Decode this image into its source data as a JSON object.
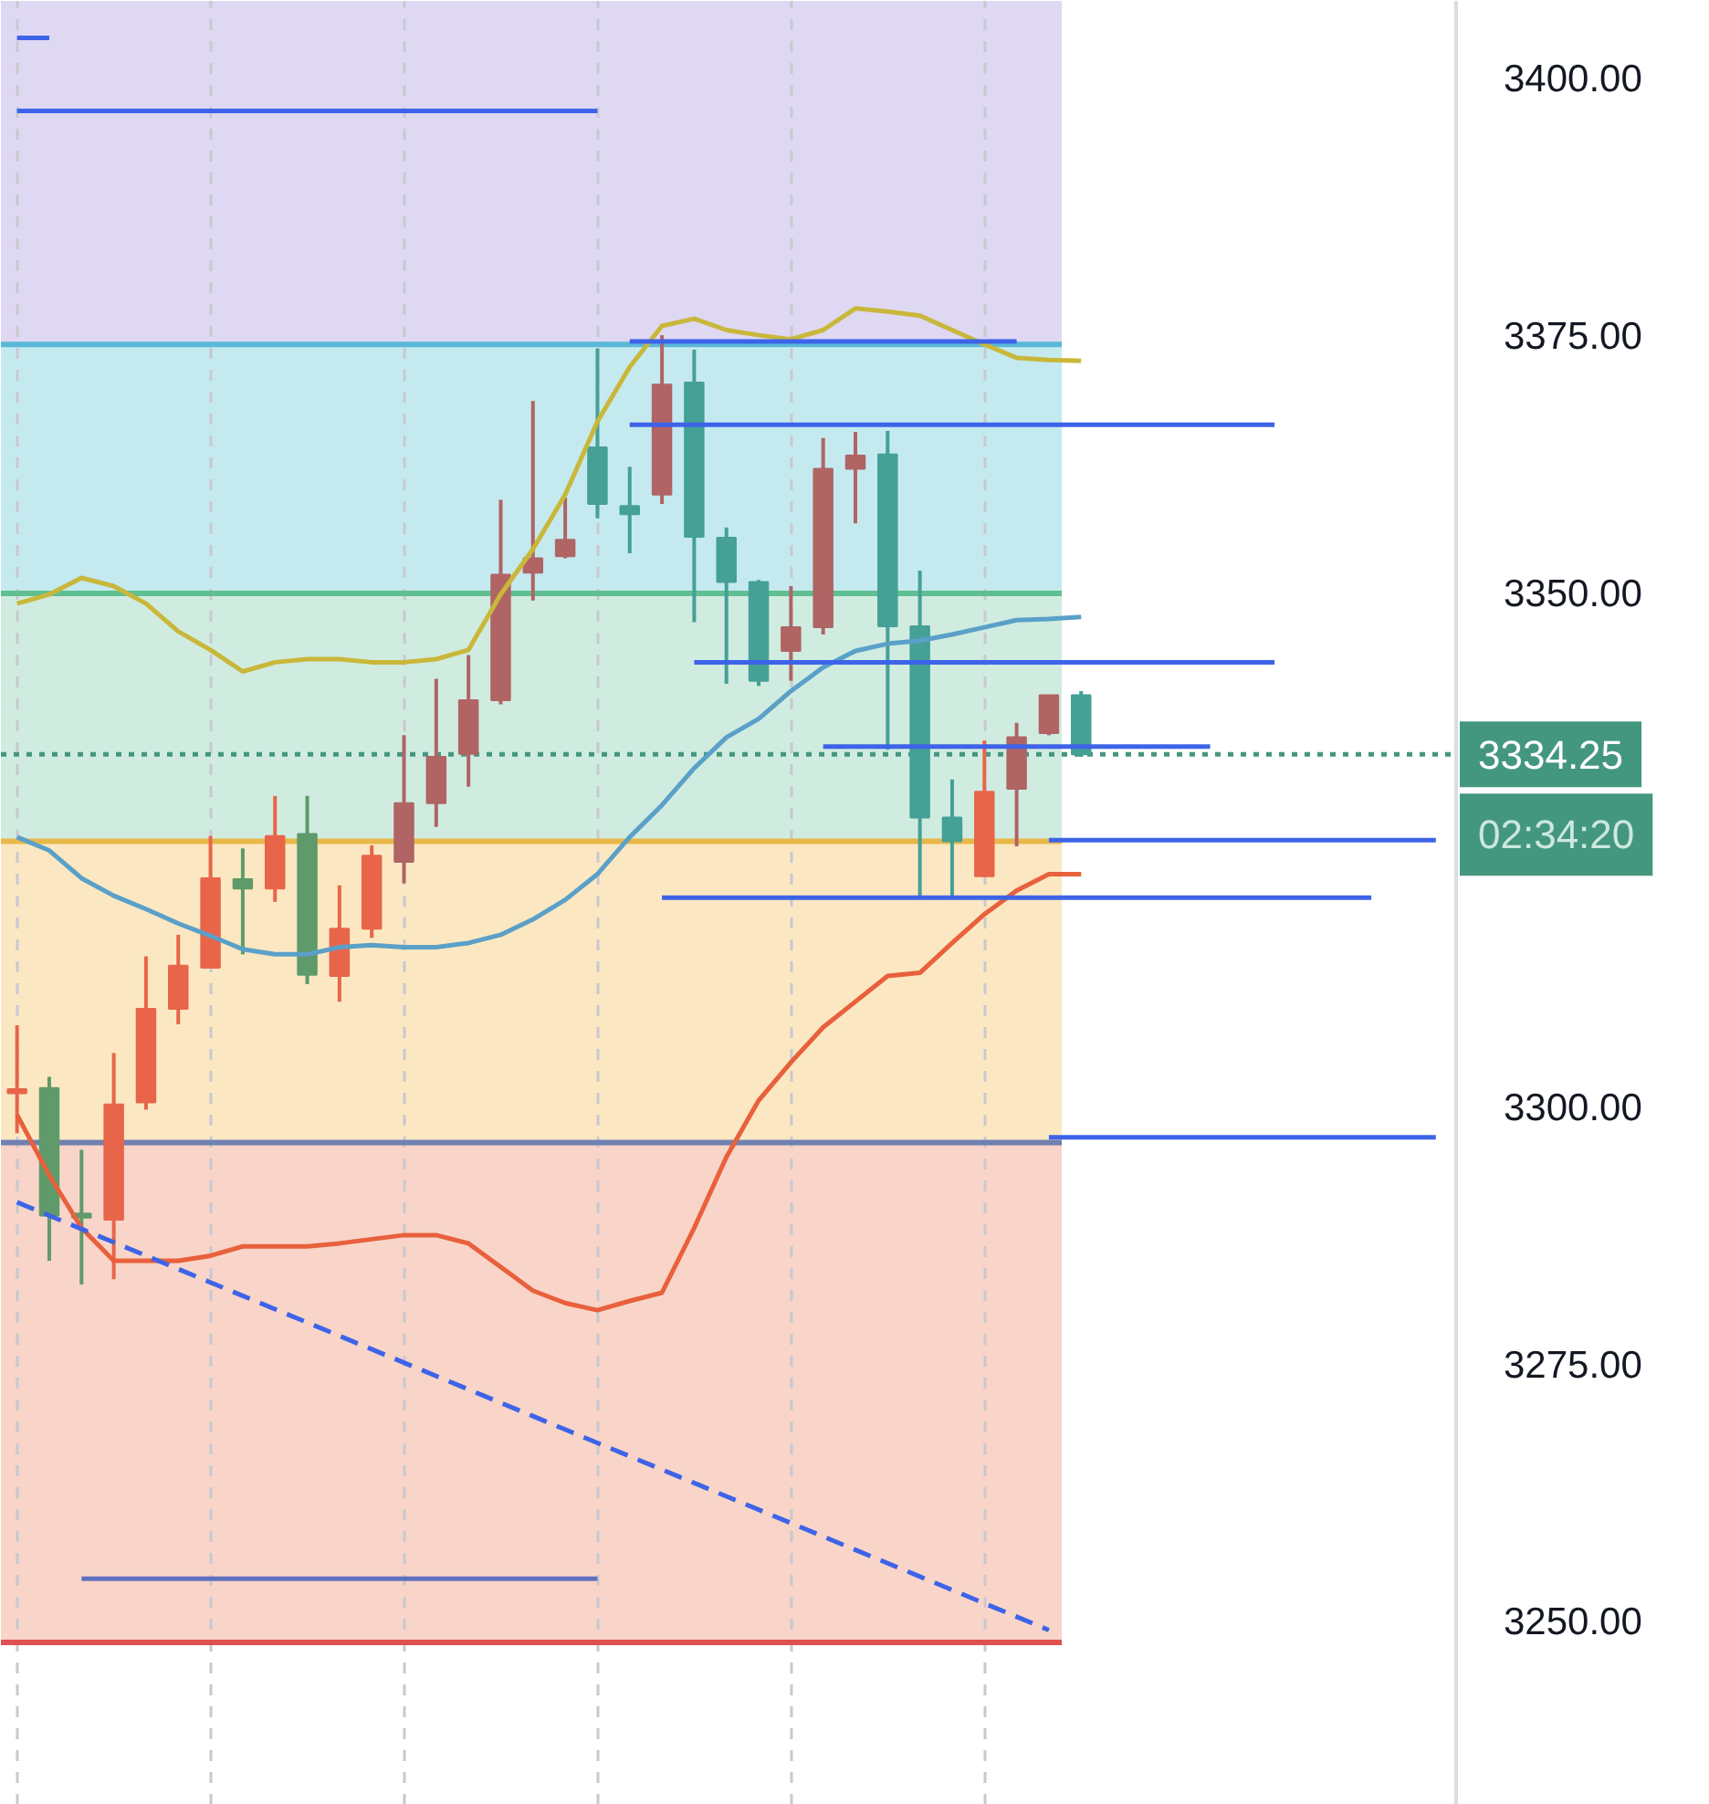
{
  "chart_data": {
    "type": "candlestick",
    "categories": [
      null,
      null,
      null,
      null,
      null,
      null,
      null,
      null,
      null,
      null,
      null,
      null,
      null,
      null,
      null,
      null,
      null,
      null,
      null,
      null,
      null,
      null,
      null,
      null,
      null,
      null,
      null,
      null,
      null,
      null,
      null,
      null,
      null,
      null,
      null,
      null,
      null,
      null,
      null,
      null,
      null,
      null,
      null,
      null,
      null,
      null,
      null,
      null,
      null,
      null,
      null,
      null,
      null
    ],
    "ohlc": [
      [
        3301.3,
        3307.9,
        3297.4,
        3301.7
      ],
      [
        3301.8,
        3302.9,
        3285.0,
        3289.4
      ],
      [
        3289.6,
        3295.8,
        3282.7,
        3289.2
      ],
      [
        3289.0,
        3305.2,
        3283.2,
        3300.2
      ],
      [
        3300.4,
        3314.6,
        3299.7,
        3309.5
      ],
      [
        3309.5,
        3316.7,
        3308.0,
        3313.7
      ],
      [
        3313.5,
        3326.3,
        3313.4,
        3322.2
      ],
      [
        3322.1,
        3325.1,
        3314.8,
        3321.2
      ],
      [
        3321.2,
        3330.2,
        3319.9,
        3326.3
      ],
      [
        3326.5,
        3330.2,
        3311.9,
        3312.8
      ],
      [
        3312.7,
        3321.5,
        3310.2,
        3317.3
      ],
      [
        3317.3,
        3325.4,
        3316.4,
        3324.4
      ],
      [
        3323.8,
        3336.1,
        3321.7,
        3329.5
      ],
      [
        3329.5,
        3341.6,
        3327.2,
        3334.0
      ],
      [
        3334.3,
        3343.9,
        3331.1,
        3339.5
      ],
      [
        3339.5,
        3359.0,
        3339.1,
        3351.7
      ],
      [
        3351.9,
        3368.6,
        3349.2,
        3353.3
      ],
      [
        3353.5,
        3359.2,
        3353.3,
        3355.1
      ],
      [
        3364.1,
        3373.7,
        3357.2,
        3358.6
      ],
      [
        3358.4,
        3362.2,
        3353.8,
        3357.6
      ],
      [
        3359.5,
        3375.0,
        3358.6,
        3370.2
      ],
      [
        3370.4,
        3373.6,
        3347.1,
        3355.4
      ],
      [
        3355.3,
        3356.3,
        3341.1,
        3351.0
      ],
      [
        3351.0,
        3351.2,
        3340.9,
        3341.4
      ],
      [
        3344.3,
        3350.6,
        3341.4,
        3346.6
      ],
      [
        3346.6,
        3365.0,
        3345.9,
        3362.0
      ],
      [
        3362.0,
        3365.6,
        3356.7,
        3363.3
      ],
      [
        3363.4,
        3365.7,
        3334.7,
        3346.7
      ],
      [
        3346.7,
        3352.1,
        3320.4,
        3328.1
      ],
      [
        3328.1,
        3331.8,
        3320.4,
        3325.8
      ],
      [
        3322.4,
        3335.6,
        3322.3,
        3330.6
      ],
      [
        3330.9,
        3337.3,
        3325.3,
        3335.9
      ],
      [
        3336.3,
        3340.0,
        3336.1,
        3340.0
      ],
      [
        3340.0,
        3340.4,
        3334.0,
        3334.25
      ],
      null,
      null,
      null,
      null,
      null,
      null,
      null,
      null,
      null,
      null,
      null,
      null,
      null,
      null,
      null,
      null,
      null,
      null,
      null
    ],
    "colors": [
      "#e8654a",
      "#5f9a6a",
      "#5f9a6a",
      "#e8654a",
      "#e8654a",
      "#e8654a",
      "#e8654a",
      "#5f9a6a",
      "#e8654a",
      "#5f9a6a",
      "#e8654a",
      "#e8654a",
      "#b06464",
      "#b06464",
      "#b06464",
      "#b06464",
      "#b06464",
      "#b06464",
      "#45a096",
      "#45a096",
      "#b06464",
      "#45a096",
      "#45a096",
      "#45a096",
      "#b06464",
      "#b06464",
      "#b06464",
      "#45a096",
      "#45a096",
      "#45a096",
      "#e8654a",
      "#b06464",
      "#b06464",
      "#45a096",
      null,
      null,
      null,
      null,
      null,
      null,
      null,
      null,
      null,
      null,
      null,
      null,
      null,
      null,
      null,
      null,
      null,
      null,
      null
    ],
    "series": [
      {
        "type": "line",
        "color": "#c9b73a",
        "values": [
          3348.9,
          3349.8,
          3351.4,
          3350.6,
          3348.9,
          3346.2,
          3344.4,
          3342.3,
          3343.2,
          3343.5,
          3343.5,
          3343.2,
          3343.2,
          3343.5,
          3344.4,
          3349.8,
          3354.2,
          3359.5,
          3366.6,
          3371.9,
          3375.9,
          3376.6,
          3375.5,
          3375.0,
          3374.6,
          3375.5,
          3377.6,
          3377.3,
          3376.9,
          3375.5,
          3374.1,
          3372.8,
          3372.6,
          3372.5,
          null,
          null,
          null,
          null,
          null,
          null,
          null,
          null,
          null,
          null,
          null,
          null,
          null,
          null,
          null,
          null,
          null,
          null,
          null
        ]
      },
      {
        "type": "line",
        "color": "#5aa0c8",
        "values": [
          3326.2,
          3324.9,
          3322.2,
          3320.5,
          3319.2,
          3317.8,
          3316.6,
          3315.3,
          3314.8,
          3314.8,
          3315.5,
          3315.7,
          3315.5,
          3315.5,
          3315.9,
          3316.7,
          3318.2,
          3320.1,
          3322.6,
          3326.2,
          3329.3,
          3332.9,
          3335.9,
          3337.7,
          3340.4,
          3342.7,
          3344.3,
          3345.0,
          3345.3,
          3345.9,
          3346.6,
          3347.3,
          3347.4,
          3347.6,
          null,
          null,
          null,
          null,
          null,
          null,
          null,
          null,
          null,
          null,
          null,
          null,
          null,
          null,
          null,
          null,
          null,
          null,
          null
        ]
      },
      {
        "type": "line",
        "color": "#e8603c",
        "values": [
          3299.2,
          3293.3,
          3288.2,
          3285.0,
          3285.0,
          3285.0,
          3285.5,
          3286.4,
          3286.4,
          3286.4,
          3286.7,
          3287.1,
          3287.5,
          3287.5,
          3286.7,
          3284.4,
          3282.1,
          3280.9,
          3280.2,
          3281.1,
          3281.9,
          3288.2,
          3295.1,
          3300.6,
          3304.3,
          3307.7,
          3310.2,
          3312.7,
          3313.0,
          3315.9,
          3318.7,
          3321.0,
          3322.6,
          3322.6,
          null,
          null,
          null,
          null,
          null,
          null,
          null,
          null,
          null,
          null,
          null,
          null,
          null,
          null,
          null,
          null,
          null,
          null,
          null
        ]
      },
      {
        "type": "line",
        "color": "#3d63e8",
        "line_style": "dashed",
        "values": [
          3290.7,
          3289.4,
          3288.1,
          3286.8,
          3285.5,
          3284.2,
          3282.9,
          3281.6,
          3280.3,
          3279.0,
          3277.7,
          3276.4,
          3275.1,
          3273.8,
          3272.5,
          3271.2,
          3269.9,
          3268.6,
          3267.3,
          3266.0,
          3264.7,
          3263.4,
          3262.1,
          3260.8,
          3259.5,
          3258.2,
          3256.9,
          3255.6,
          3254.3,
          3253.0,
          3251.7,
          3250.4,
          3249.1,
          null,
          null,
          null,
          null,
          null,
          null,
          null,
          null,
          null,
          null,
          null,
          null,
          null,
          null,
          null,
          null,
          null,
          null,
          null,
          null
        ]
      },
      {
        "type": "line",
        "color": "#3d63e8",
        "values": [
          3403.9,
          3403.9,
          null,
          null,
          null,
          null,
          null,
          null,
          null,
          null,
          null,
          null,
          null,
          null,
          null,
          null,
          null,
          null,
          null,
          null,
          null,
          null,
          null,
          null,
          null,
          null,
          null,
          null,
          null,
          null,
          null,
          null,
          null,
          null,
          null,
          null,
          null,
          null,
          null,
          null,
          null,
          null,
          null,
          null,
          null,
          null,
          null,
          null,
          null,
          null,
          null,
          null,
          null
        ]
      },
      {
        "type": "line",
        "color": "#3d63e8",
        "values": [
          3396.8,
          3396.8,
          3396.8,
          3396.8,
          3396.8,
          3396.8,
          3396.8,
          3396.8,
          3396.8,
          3396.8,
          3396.8,
          3396.8,
          3396.8,
          3396.8,
          3396.8,
          3396.8,
          3396.8,
          3396.8,
          3396.8,
          null,
          null,
          null,
          null,
          null,
          null,
          null,
          null,
          null,
          null,
          null,
          null,
          null,
          null,
          null,
          null,
          null,
          null,
          null,
          null,
          null,
          null,
          null,
          null,
          null,
          null,
          null,
          null,
          null,
          null,
          null,
          null,
          null,
          null
        ]
      },
      {
        "type": "line",
        "color": "#3d63e8",
        "values": [
          null,
          null,
          null,
          null,
          null,
          null,
          null,
          null,
          null,
          null,
          null,
          null,
          null,
          null,
          null,
          null,
          null,
          null,
          null,
          3374.4,
          3374.4,
          3374.4,
          3374.4,
          3374.4,
          3374.4,
          3374.4,
          3374.4,
          3374.4,
          3374.4,
          3374.4,
          3374.4,
          3374.4,
          null,
          null,
          null,
          null,
          null,
          null,
          null,
          null,
          null,
          null,
          null,
          null,
          null,
          null,
          null,
          null,
          null,
          null,
          null,
          null,
          null
        ]
      },
      {
        "type": "line",
        "color": "#3d63e8",
        "values": [
          null,
          null,
          null,
          null,
          null,
          null,
          null,
          null,
          null,
          null,
          null,
          null,
          null,
          null,
          null,
          null,
          null,
          null,
          null,
          3366.3,
          3366.3,
          3366.3,
          3366.3,
          3366.3,
          3366.3,
          3366.3,
          3366.3,
          3366.3,
          3366.3,
          3366.3,
          3366.3,
          3366.3,
          3366.3,
          3366.3,
          3366.3,
          3366.3,
          3366.3,
          3366.3,
          3366.3,
          3366.3,
          null,
          null,
          null,
          null,
          null,
          null,
          null,
          null,
          null,
          null,
          null,
          null,
          null
        ]
      },
      {
        "type": "line",
        "color": "#3d63e8",
        "values": [
          null,
          null,
          null,
          null,
          null,
          null,
          null,
          null,
          null,
          null,
          null,
          null,
          null,
          null,
          null,
          null,
          null,
          null,
          null,
          null,
          null,
          3343.2,
          3343.2,
          3343.2,
          3343.2,
          3343.2,
          3343.2,
          3343.2,
          3343.2,
          3343.2,
          3343.2,
          3343.2,
          3343.2,
          3343.2,
          3343.2,
          3343.2,
          3343.2,
          3343.2,
          3343.2,
          3343.2,
          null,
          null,
          null,
          null,
          null,
          null,
          null,
          null,
          null,
          null,
          null,
          null,
          null
        ]
      },
      {
        "type": "line",
        "color": "#3d63e8",
        "values": [
          null,
          null,
          null,
          null,
          null,
          null,
          null,
          null,
          null,
          null,
          null,
          null,
          null,
          null,
          null,
          null,
          null,
          null,
          null,
          null,
          null,
          null,
          null,
          null,
          null,
          3335.0,
          3335.0,
          3335.0,
          3335.0,
          3335.0,
          3335.0,
          3335.0,
          3335.0,
          3335.0,
          3335.0,
          3335.0,
          3335.0,
          3335.0,
          null,
          null,
          null,
          null,
          null,
          null,
          null,
          null,
          null,
          null,
          null,
          null,
          null,
          null,
          null
        ]
      },
      {
        "type": "line",
        "color": "#3d63e8",
        "values": [
          null,
          null,
          null,
          null,
          null,
          null,
          null,
          null,
          null,
          null,
          null,
          null,
          null,
          null,
          null,
          null,
          null,
          null,
          null,
          null,
          null,
          null,
          null,
          null,
          null,
          null,
          null,
          null,
          null,
          null,
          null,
          null,
          3325.9,
          3325.9,
          3325.9,
          3325.9,
          3325.9,
          3325.9,
          3325.9,
          3325.9,
          3325.9,
          3325.9,
          3325.9,
          3325.9,
          3325.9,
          null,
          null,
          null,
          null,
          null,
          null,
          null,
          null
        ]
      },
      {
        "type": "line",
        "color": "#3d63e8",
        "values": [
          null,
          null,
          null,
          null,
          null,
          null,
          null,
          null,
          null,
          null,
          null,
          null,
          null,
          null,
          null,
          null,
          null,
          null,
          null,
          null,
          3320.3,
          3320.3,
          3320.3,
          3320.3,
          3320.3,
          3320.3,
          3320.3,
          3320.3,
          3320.3,
          3320.3,
          3320.3,
          3320.3,
          3320.3,
          3320.3,
          3320.3,
          3320.3,
          3320.3,
          3320.3,
          3320.3,
          3320.3,
          3320.3,
          3320.3,
          3320.3,
          null,
          null,
          null,
          null,
          null,
          null,
          null,
          null,
          null,
          null
        ]
      },
      {
        "type": "line",
        "color": "#3d63e8",
        "values": [
          null,
          null,
          null,
          null,
          null,
          null,
          null,
          null,
          null,
          null,
          null,
          null,
          null,
          null,
          null,
          null,
          null,
          null,
          null,
          null,
          null,
          null,
          null,
          null,
          null,
          null,
          null,
          null,
          null,
          null,
          null,
          null,
          3297.0,
          3297.0,
          3297.0,
          3297.0,
          3297.0,
          3297.0,
          3297.0,
          3297.0,
          3297.0,
          3297.0,
          3297.0,
          3297.0,
          3297.0,
          null,
          null,
          null,
          null,
          null,
          null,
          null,
          null
        ]
      },
      {
        "type": "line",
        "color": "#6070c0",
        "values": [
          null,
          null,
          3254.1,
          3254.1,
          3254.1,
          3254.1,
          3254.1,
          3254.1,
          3254.1,
          3254.1,
          3254.1,
          3254.1,
          3254.1,
          3254.1,
          3254.1,
          3254.1,
          3254.1,
          3254.1,
          3254.1,
          null,
          null,
          null,
          null,
          null,
          null,
          null,
          null,
          null,
          null,
          null,
          null,
          null,
          null,
          null,
          null,
          null,
          null,
          null,
          null,
          null,
          null,
          null,
          null,
          null,
          null,
          null,
          null,
          null,
          null,
          null,
          null,
          null,
          null
        ]
      }
    ],
    "bands": [
      {
        "axis": "y",
        "from": 3374.1,
        "to": 3407.5,
        "color": "#dfd8f3"
      },
      {
        "axis": "y",
        "from": 3349.9,
        "to": 3374.1,
        "color": "#c4eaf0"
      },
      {
        "axis": "y",
        "from": 3325.8,
        "to": 3349.9,
        "color": "#d0ece0"
      },
      {
        "axis": "y",
        "from": 3296.5,
        "to": 3325.8,
        "color": "#fbe8c2"
      },
      {
        "axis": "y",
        "from": 3247.9,
        "to": 3296.5,
        "color": "#f8d5c8"
      }
    ],
    "ref_lines": [
      {
        "axis": "y",
        "value": 3374.1,
        "color": "#5ab8d8"
      },
      {
        "axis": "y",
        "value": 3349.9,
        "color": "#5fbf90"
      },
      {
        "axis": "y",
        "value": 3325.8,
        "color": "#e8b848"
      },
      {
        "axis": "y",
        "value": 3296.5,
        "color": "#7080b0"
      },
      {
        "axis": "y",
        "value": 3247.9,
        "color": "#e05050"
      },
      {
        "axis": "y",
        "value": 3334.25,
        "color": "#44977f",
        "line_style": "dotted",
        "label": "3334.25"
      }
    ],
    "annotations": [
      "02:34:20"
    ],
    "ylim": [
      3232.1,
      3407.5
    ],
    "yticks": [
      {
        "value": 3250,
        "label": "3250.00"
      },
      {
        "value": 3275,
        "label": "3275.00"
      },
      {
        "value": 3300,
        "label": "3300.00"
      },
      {
        "value": 3350,
        "label": "3350.00"
      },
      {
        "value": 3375,
        "label": "3375.00"
      },
      {
        "value": 3400,
        "label": "3400.00"
      }
    ],
    "tick_labels": "y",
    "grid": "x"
  }
}
